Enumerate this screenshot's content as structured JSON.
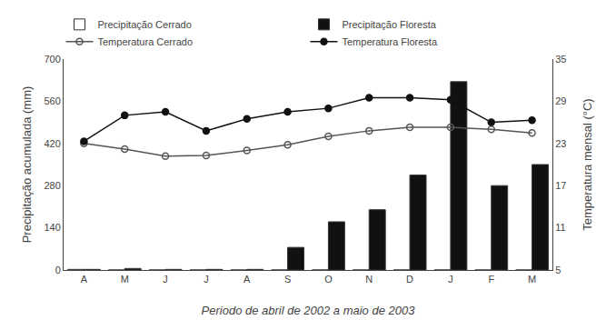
{
  "chart_data": {
    "type": "bar",
    "categories": [
      "A",
      "M",
      "J",
      "J",
      "A",
      "S",
      "O",
      "N",
      "D",
      "J",
      "F",
      "M"
    ],
    "xlabel": "Periodo de abril de 2002 a maio de 2003",
    "ylabel": "Precipitação acumulada (mm)",
    "y2label": "Temperatura mensal (°C)",
    "ylim": [
      0,
      700
    ],
    "yticks": [
      0,
      140,
      280,
      420,
      560,
      700
    ],
    "y2lim": [
      5,
      35
    ],
    "y2ticks": [
      5,
      11,
      17,
      23,
      29,
      35
    ],
    "grid": false,
    "legend": "top",
    "series": [
      {
        "name": "Precipitação Cerrado",
        "type": "bar",
        "color": "#ffffff",
        "values": [
          2,
          0,
          0,
          0,
          0,
          0,
          0,
          0,
          0,
          0,
          0,
          0
        ]
      },
      {
        "name": "Precipitação Floresta",
        "type": "bar",
        "color": "#111111",
        "values": [
          2,
          5,
          2,
          2,
          2,
          75,
          160,
          200,
          315,
          625,
          280,
          350
        ]
      },
      {
        "name": "Temperatura Cerrado",
        "type": "line",
        "axis": "y2",
        "color": "#555555",
        "marker": "circle-open",
        "values": [
          23.0,
          22.2,
          21.2,
          21.3,
          22.0,
          22.8,
          24.0,
          24.8,
          25.3,
          25.3,
          25.0,
          24.5
        ]
      },
      {
        "name": "Temperatura Floresta",
        "type": "line",
        "axis": "y2",
        "color": "#111111",
        "marker": "circle",
        "values": [
          23.3,
          27.0,
          27.5,
          24.8,
          26.5,
          27.5,
          28.0,
          29.5,
          29.5,
          29.2,
          26.0,
          26.3
        ]
      }
    ]
  }
}
